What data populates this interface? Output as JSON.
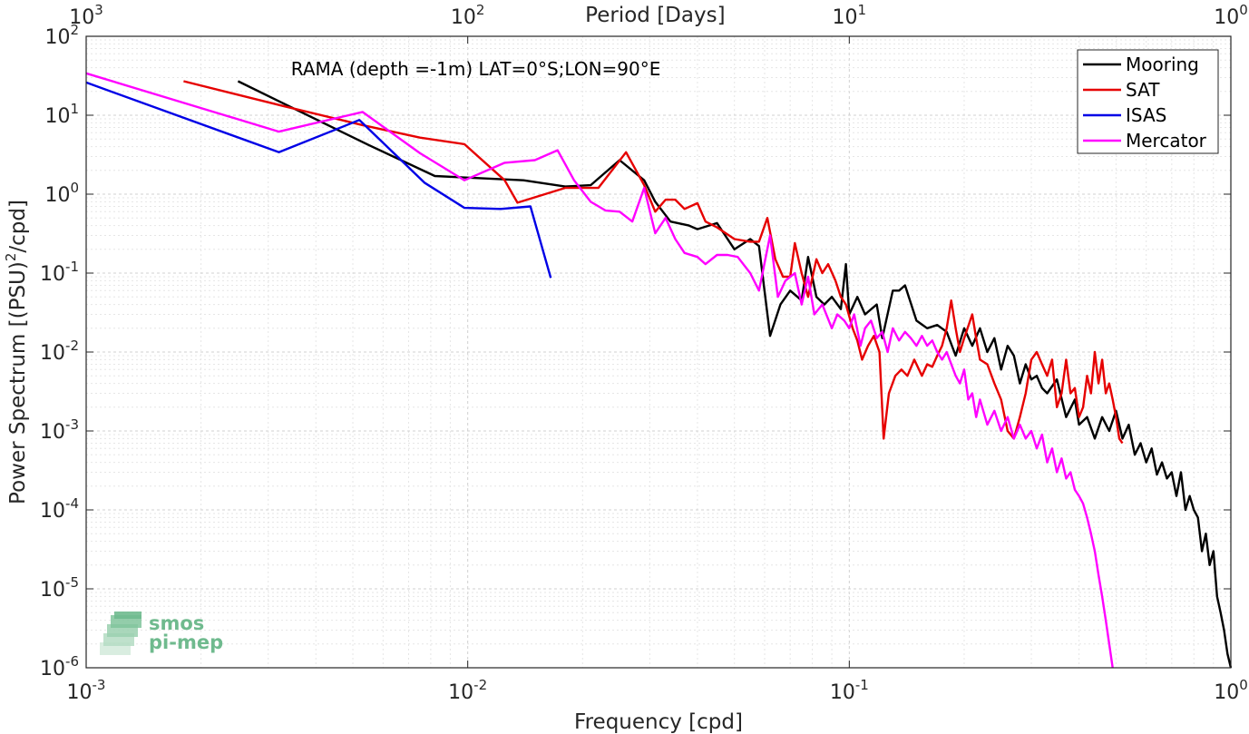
{
  "chart_data": {
    "type": "line",
    "title": "",
    "annotation": "RAMA (depth =-1m) LAT=0°S;LON=90°E",
    "xlabel": "Frequency [cpd]",
    "ylabel_prefix": "Power Spectrum [(PSU)",
    "ylabel_sup": "2",
    "ylabel_suffix": "/cpd]",
    "top_xlabel": "Period [Days]",
    "xscale": "log",
    "yscale": "log",
    "xlim": [
      0.001,
      1
    ],
    "ylim": [
      1e-06,
      100
    ],
    "grid": true,
    "legend_position": "top-right",
    "x_ticks": [
      {
        "value": 0.001,
        "base": "10",
        "exp": "-3"
      },
      {
        "value": 0.01,
        "base": "10",
        "exp": "-2"
      },
      {
        "value": 0.1,
        "base": "10",
        "exp": "-1"
      },
      {
        "value": 1,
        "base": "10",
        "exp": "0"
      }
    ],
    "y_ticks": [
      {
        "value": 1e-06,
        "base": "10",
        "exp": "-6"
      },
      {
        "value": 1e-05,
        "base": "10",
        "exp": "-5"
      },
      {
        "value": 0.0001,
        "base": "10",
        "exp": "-4"
      },
      {
        "value": 0.001,
        "base": "10",
        "exp": "-3"
      },
      {
        "value": 0.01,
        "base": "10",
        "exp": "-2"
      },
      {
        "value": 0.1,
        "base": "10",
        "exp": "-1"
      },
      {
        "value": 1,
        "base": "10",
        "exp": "0"
      },
      {
        "value": 10,
        "base": "10",
        "exp": "1"
      },
      {
        "value": 100,
        "base": "10",
        "exp": "2"
      }
    ],
    "top_ticks": [
      {
        "freq": 0.001,
        "base": "10",
        "exp": "3"
      },
      {
        "freq": 0.01,
        "base": "10",
        "exp": "2"
      },
      {
        "freq": 0.1,
        "base": "10",
        "exp": "1"
      },
      {
        "freq": 1,
        "base": "10",
        "exp": "0"
      }
    ],
    "series": [
      {
        "name": "Mooring",
        "color": "#000000",
        "points": [
          [
            0.0025,
            27
          ],
          [
            0.0033,
            14
          ],
          [
            0.0055,
            4.2
          ],
          [
            0.0082,
            1.7
          ],
          [
            0.0105,
            1.6
          ],
          [
            0.014,
            1.5
          ],
          [
            0.018,
            1.25
          ],
          [
            0.021,
            1.3
          ],
          [
            0.025,
            2.7
          ],
          [
            0.029,
            1.5
          ],
          [
            0.031,
            0.8
          ],
          [
            0.034,
            0.45
          ],
          [
            0.038,
            0.4
          ],
          [
            0.04,
            0.36
          ],
          [
            0.045,
            0.43
          ],
          [
            0.05,
            0.2
          ],
          [
            0.055,
            0.27
          ],
          [
            0.058,
            0.22
          ],
          [
            0.062,
            0.016
          ],
          [
            0.066,
            0.04
          ],
          [
            0.07,
            0.06
          ],
          [
            0.075,
            0.045
          ],
          [
            0.078,
            0.16
          ],
          [
            0.082,
            0.05
          ],
          [
            0.086,
            0.04
          ],
          [
            0.09,
            0.05
          ],
          [
            0.095,
            0.035
          ],
          [
            0.098,
            0.13
          ],
          [
            0.1,
            0.03
          ],
          [
            0.105,
            0.05
          ],
          [
            0.11,
            0.03
          ],
          [
            0.118,
            0.04
          ],
          [
            0.122,
            0.015
          ],
          [
            0.13,
            0.06
          ],
          [
            0.135,
            0.06
          ],
          [
            0.14,
            0.07
          ],
          [
            0.15,
            0.025
          ],
          [
            0.16,
            0.02
          ],
          [
            0.17,
            0.022
          ],
          [
            0.18,
            0.018
          ],
          [
            0.19,
            0.009
          ],
          [
            0.2,
            0.02
          ],
          [
            0.21,
            0.012
          ],
          [
            0.22,
            0.02
          ],
          [
            0.23,
            0.01
          ],
          [
            0.24,
            0.015
          ],
          [
            0.25,
            0.006
          ],
          [
            0.26,
            0.012
          ],
          [
            0.27,
            0.009
          ],
          [
            0.28,
            0.004
          ],
          [
            0.29,
            0.007
          ],
          [
            0.3,
            0.0045
          ],
          [
            0.31,
            0.005
          ],
          [
            0.32,
            0.0035
          ],
          [
            0.33,
            0.003
          ],
          [
            0.35,
            0.0045
          ],
          [
            0.37,
            0.0015
          ],
          [
            0.39,
            0.0025
          ],
          [
            0.4,
            0.0012
          ],
          [
            0.42,
            0.0015
          ],
          [
            0.44,
            0.0008
          ],
          [
            0.46,
            0.0015
          ],
          [
            0.48,
            0.001
          ],
          [
            0.5,
            0.0018
          ],
          [
            0.52,
            0.0008
          ],
          [
            0.54,
            0.0012
          ],
          [
            0.56,
            0.0005
          ],
          [
            0.58,
            0.0007
          ],
          [
            0.6,
            0.0004
          ],
          [
            0.62,
            0.0006
          ],
          [
            0.64,
            0.00028
          ],
          [
            0.66,
            0.0004
          ],
          [
            0.68,
            0.00025
          ],
          [
            0.7,
            0.0003
          ],
          [
            0.72,
            0.00015
          ],
          [
            0.74,
            0.0003
          ],
          [
            0.76,
            0.0001
          ],
          [
            0.78,
            0.00015
          ],
          [
            0.8,
            0.0001
          ],
          [
            0.82,
            8e-05
          ],
          [
            0.84,
            3e-05
          ],
          [
            0.86,
            5e-05
          ],
          [
            0.88,
            2e-05
          ],
          [
            0.9,
            3e-05
          ],
          [
            0.92,
            8e-06
          ],
          [
            0.94,
            5e-06
          ],
          [
            0.96,
            3e-06
          ],
          [
            0.98,
            1.5e-06
          ],
          [
            1.0,
            1e-06
          ]
        ]
      },
      {
        "name": "SAT",
        "color": "#e60000",
        "points": [
          [
            0.0018,
            27
          ],
          [
            0.0033,
            13
          ],
          [
            0.0053,
            7.5
          ],
          [
            0.0075,
            5.2
          ],
          [
            0.0098,
            4.3
          ],
          [
            0.0125,
            1.5
          ],
          [
            0.0135,
            0.78
          ],
          [
            0.018,
            1.2
          ],
          [
            0.022,
            1.2
          ],
          [
            0.026,
            3.4
          ],
          [
            0.029,
            1.3
          ],
          [
            0.031,
            0.6
          ],
          [
            0.033,
            0.85
          ],
          [
            0.035,
            0.85
          ],
          [
            0.037,
            0.65
          ],
          [
            0.04,
            0.77
          ],
          [
            0.042,
            0.45
          ],
          [
            0.045,
            0.38
          ],
          [
            0.05,
            0.27
          ],
          [
            0.055,
            0.25
          ],
          [
            0.058,
            0.25
          ],
          [
            0.061,
            0.5
          ],
          [
            0.064,
            0.15
          ],
          [
            0.067,
            0.09
          ],
          [
            0.07,
            0.09
          ],
          [
            0.072,
            0.24
          ],
          [
            0.075,
            0.1
          ],
          [
            0.078,
            0.05
          ],
          [
            0.082,
            0.15
          ],
          [
            0.085,
            0.1
          ],
          [
            0.088,
            0.13
          ],
          [
            0.092,
            0.08
          ],
          [
            0.095,
            0.05
          ],
          [
            0.098,
            0.04
          ],
          [
            0.102,
            0.02
          ],
          [
            0.105,
            0.014
          ],
          [
            0.108,
            0.008
          ],
          [
            0.112,
            0.012
          ],
          [
            0.116,
            0.016
          ],
          [
            0.12,
            0.01
          ],
          [
            0.123,
            0.0008
          ],
          [
            0.127,
            0.003
          ],
          [
            0.132,
            0.005
          ],
          [
            0.137,
            0.006
          ],
          [
            0.142,
            0.005
          ],
          [
            0.148,
            0.008
          ],
          [
            0.155,
            0.005
          ],
          [
            0.16,
            0.007
          ],
          [
            0.165,
            0.0065
          ],
          [
            0.17,
            0.009
          ],
          [
            0.175,
            0.012
          ],
          [
            0.18,
            0.02
          ],
          [
            0.185,
            0.045
          ],
          [
            0.19,
            0.02
          ],
          [
            0.195,
            0.01
          ],
          [
            0.2,
            0.015
          ],
          [
            0.21,
            0.03
          ],
          [
            0.215,
            0.015
          ],
          [
            0.22,
            0.008
          ],
          [
            0.23,
            0.007
          ],
          [
            0.24,
            0.004
          ],
          [
            0.25,
            0.0025
          ],
          [
            0.26,
            0.001
          ],
          [
            0.27,
            0.0008
          ],
          [
            0.28,
            0.0015
          ],
          [
            0.29,
            0.003
          ],
          [
            0.3,
            0.008
          ],
          [
            0.31,
            0.01
          ],
          [
            0.32,
            0.007
          ],
          [
            0.33,
            0.005
          ],
          [
            0.34,
            0.008
          ],
          [
            0.35,
            0.002
          ],
          [
            0.36,
            0.003
          ],
          [
            0.37,
            0.008
          ],
          [
            0.38,
            0.003
          ],
          [
            0.39,
            0.0035
          ],
          [
            0.4,
            0.0015
          ],
          [
            0.41,
            0.002
          ],
          [
            0.42,
            0.005
          ],
          [
            0.43,
            0.003
          ],
          [
            0.44,
            0.01
          ],
          [
            0.45,
            0.004
          ],
          [
            0.46,
            0.008
          ],
          [
            0.47,
            0.003
          ],
          [
            0.48,
            0.004
          ],
          [
            0.49,
            0.0025
          ],
          [
            0.5,
            0.0015
          ],
          [
            0.51,
            0.0008
          ],
          [
            0.52,
            0.0007
          ]
        ]
      },
      {
        "name": "ISAS",
        "color": "#0000e6",
        "points": [
          [
            0.001,
            26
          ],
          [
            0.0032,
            3.4
          ],
          [
            0.0052,
            8.7
          ],
          [
            0.0077,
            1.4
          ],
          [
            0.0098,
            0.67
          ],
          [
            0.0122,
            0.65
          ],
          [
            0.0146,
            0.7
          ],
          [
            0.0165,
            0.087
          ]
        ]
      },
      {
        "name": "Mercator",
        "color": "#ff00ff",
        "points": [
          [
            0.001,
            34
          ],
          [
            0.0032,
            6.2
          ],
          [
            0.0053,
            11
          ],
          [
            0.0075,
            3.3
          ],
          [
            0.0098,
            1.5
          ],
          [
            0.0125,
            2.5
          ],
          [
            0.015,
            2.7
          ],
          [
            0.0172,
            3.6
          ],
          [
            0.019,
            1.5
          ],
          [
            0.021,
            0.8
          ],
          [
            0.023,
            0.62
          ],
          [
            0.025,
            0.6
          ],
          [
            0.027,
            0.45
          ],
          [
            0.029,
            1.2
          ],
          [
            0.031,
            0.32
          ],
          [
            0.033,
            0.5
          ],
          [
            0.035,
            0.27
          ],
          [
            0.037,
            0.18
          ],
          [
            0.04,
            0.16
          ],
          [
            0.042,
            0.13
          ],
          [
            0.045,
            0.17
          ],
          [
            0.048,
            0.17
          ],
          [
            0.051,
            0.16
          ],
          [
            0.055,
            0.1
          ],
          [
            0.058,
            0.06
          ],
          [
            0.062,
            0.3
          ],
          [
            0.065,
            0.05
          ],
          [
            0.068,
            0.08
          ],
          [
            0.072,
            0.1
          ],
          [
            0.075,
            0.04
          ],
          [
            0.078,
            0.09
          ],
          [
            0.081,
            0.03
          ],
          [
            0.085,
            0.04
          ],
          [
            0.09,
            0.02
          ],
          [
            0.093,
            0.03
          ],
          [
            0.097,
            0.025
          ],
          [
            0.1,
            0.02
          ],
          [
            0.103,
            0.03
          ],
          [
            0.107,
            0.012
          ],
          [
            0.11,
            0.02
          ],
          [
            0.114,
            0.025
          ],
          [
            0.118,
            0.015
          ],
          [
            0.122,
            0.018
          ],
          [
            0.126,
            0.01
          ],
          [
            0.13,
            0.02
          ],
          [
            0.135,
            0.014
          ],
          [
            0.14,
            0.018
          ],
          [
            0.145,
            0.015
          ],
          [
            0.15,
            0.012
          ],
          [
            0.155,
            0.016
          ],
          [
            0.16,
            0.012
          ],
          [
            0.165,
            0.014
          ],
          [
            0.17,
            0.01
          ],
          [
            0.175,
            0.008
          ],
          [
            0.18,
            0.01
          ],
          [
            0.19,
            0.005
          ],
          [
            0.195,
            0.004
          ],
          [
            0.2,
            0.006
          ],
          [
            0.205,
            0.0025
          ],
          [
            0.21,
            0.003
          ],
          [
            0.215,
            0.0015
          ],
          [
            0.22,
            0.0025
          ],
          [
            0.23,
            0.0012
          ],
          [
            0.24,
            0.0018
          ],
          [
            0.25,
            0.001
          ],
          [
            0.26,
            0.0015
          ],
          [
            0.27,
            0.0008
          ],
          [
            0.28,
            0.0012
          ],
          [
            0.29,
            0.0008
          ],
          [
            0.3,
            0.001
          ],
          [
            0.31,
            0.0006
          ],
          [
            0.32,
            0.0009
          ],
          [
            0.33,
            0.0004
          ],
          [
            0.34,
            0.0006
          ],
          [
            0.35,
            0.0003
          ],
          [
            0.36,
            0.00045
          ],
          [
            0.37,
            0.00025
          ],
          [
            0.38,
            0.0003
          ],
          [
            0.39,
            0.00018
          ],
          [
            0.4,
            0.00015
          ],
          [
            0.41,
            0.00012
          ],
          [
            0.42,
            8e-05
          ],
          [
            0.43,
            5e-05
          ],
          [
            0.44,
            3e-05
          ],
          [
            0.45,
            1.5e-05
          ],
          [
            0.46,
            8e-06
          ],
          [
            0.47,
            4e-06
          ],
          [
            0.48,
            2e-06
          ],
          [
            0.49,
            1e-06
          ]
        ]
      }
    ]
  },
  "logo": {
    "line1": "smos",
    "line2": "pi-mep",
    "color": "#6fba8e"
  }
}
